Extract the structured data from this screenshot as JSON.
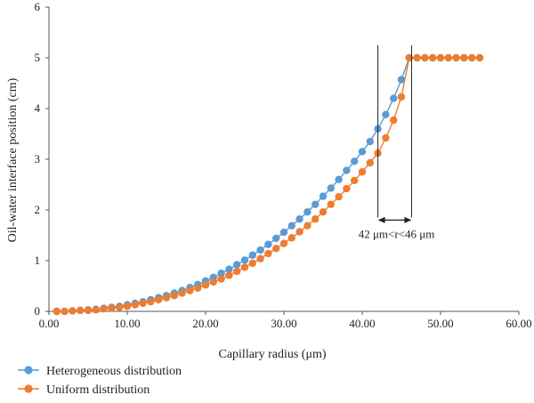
{
  "chart_data": {
    "type": "line",
    "title": "",
    "xlabel": "Capillary radius (μm)",
    "ylabel": "Oil-water interface position (cm)",
    "xlim": [
      0,
      60
    ],
    "ylim": [
      0,
      6
    ],
    "x_ticks": [
      0,
      10,
      20,
      30,
      40,
      50,
      60
    ],
    "x_tick_labels": [
      "0.00",
      "10.00",
      "20.00",
      "30.00",
      "40.00",
      "50.00",
      "60.00"
    ],
    "y_ticks": [
      0,
      1,
      2,
      3,
      4,
      5,
      6
    ],
    "y_tick_labels": [
      "0",
      "1",
      "2",
      "3",
      "4",
      "5",
      "6"
    ],
    "grid": false,
    "legend_position": "bottom-left",
    "series": [
      {
        "name": "Heterogeneous distribution",
        "color": "#5b9bd5",
        "x": [
          1,
          2,
          3,
          4,
          5,
          6,
          7,
          8,
          9,
          10,
          11,
          12,
          13,
          14,
          15,
          16,
          17,
          18,
          19,
          20,
          21,
          22,
          23,
          24,
          25,
          26,
          27,
          28,
          29,
          30,
          31,
          32,
          33,
          34,
          35,
          36,
          37,
          38,
          39,
          40,
          41,
          42,
          43,
          44,
          45,
          46,
          47,
          48,
          49,
          50,
          51,
          52,
          53,
          54,
          55
        ],
        "y": [
          0.0,
          0.0,
          0.01,
          0.02,
          0.03,
          0.04,
          0.06,
          0.08,
          0.1,
          0.13,
          0.16,
          0.19,
          0.23,
          0.27,
          0.31,
          0.36,
          0.41,
          0.47,
          0.53,
          0.6,
          0.67,
          0.75,
          0.83,
          0.92,
          1.01,
          1.11,
          1.21,
          1.32,
          1.44,
          1.56,
          1.69,
          1.82,
          1.96,
          2.11,
          2.27,
          2.43,
          2.6,
          2.78,
          2.96,
          3.15,
          3.35,
          3.6,
          3.88,
          4.2,
          4.57,
          5.0,
          5.0,
          5.0,
          5.0,
          5.0,
          5.0,
          5.0,
          5.0,
          5.0,
          5.0
        ]
      },
      {
        "name": "Uniform distribution",
        "color": "#ed7d31",
        "x": [
          1,
          2,
          3,
          4,
          5,
          6,
          7,
          8,
          9,
          10,
          11,
          12,
          13,
          14,
          15,
          16,
          17,
          18,
          19,
          20,
          21,
          22,
          23,
          24,
          25,
          26,
          27,
          28,
          29,
          30,
          31,
          32,
          33,
          34,
          35,
          36,
          37,
          38,
          39,
          40,
          41,
          42,
          43,
          44,
          45,
          46,
          47,
          48,
          49,
          50,
          51,
          52,
          53,
          54,
          55
        ],
        "y": [
          0.0,
          0.0,
          0.01,
          0.02,
          0.02,
          0.03,
          0.05,
          0.06,
          0.08,
          0.1,
          0.13,
          0.16,
          0.19,
          0.23,
          0.27,
          0.31,
          0.36,
          0.41,
          0.46,
          0.52,
          0.58,
          0.64,
          0.71,
          0.79,
          0.87,
          0.95,
          1.04,
          1.14,
          1.24,
          1.34,
          1.45,
          1.57,
          1.69,
          1.82,
          1.96,
          2.11,
          2.26,
          2.42,
          2.58,
          2.75,
          2.93,
          3.12,
          3.42,
          3.77,
          4.23,
          5.0,
          5.0,
          5.0,
          5.0,
          5.0,
          5.0,
          5.0,
          5.0,
          5.0,
          5.0
        ]
      }
    ],
    "annotation": {
      "text": "42 μm<r<46 μm",
      "x_from": 42,
      "x_to": 46.3,
      "y_line_top": 5.25,
      "y_line_bottom": 1.85,
      "y_arrow": 1.8,
      "y_text": 1.45
    }
  }
}
